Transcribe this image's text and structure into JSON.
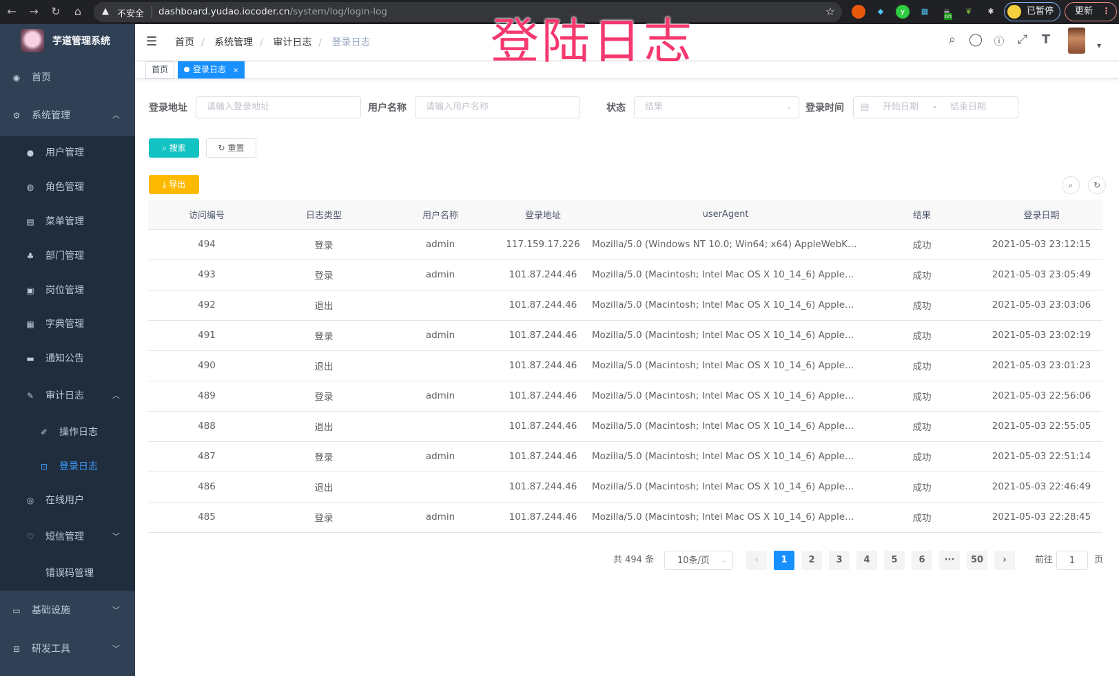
{
  "browser": {
    "insecure": "不安全",
    "url_host": "dashboard.yudao.iocoder.cn",
    "url_path": "/system/log/login-log",
    "paused": "已暂停",
    "update": "更新",
    "ext_badge": "on"
  },
  "sidebar": {
    "title": "芋道管理系统",
    "items": [
      {
        "label": "首页",
        "icon": "dashboard-icon"
      },
      {
        "label": "系统管理",
        "icon": "gear-icon",
        "expanded": true
      },
      {
        "label": "用户管理",
        "icon": "user-icon"
      },
      {
        "label": "角色管理",
        "icon": "peoples-icon"
      },
      {
        "label": "菜单管理",
        "icon": "tree-table-icon"
      },
      {
        "label": "部门管理",
        "icon": "tree-icon"
      },
      {
        "label": "岗位管理",
        "icon": "post-icon"
      },
      {
        "label": "字典管理",
        "icon": "dict-icon"
      },
      {
        "label": "通知公告",
        "icon": "message-icon"
      },
      {
        "label": "审计日志",
        "icon": "log-icon",
        "expanded": true
      },
      {
        "label": "操作日志",
        "icon": "form-icon"
      },
      {
        "label": "登录日志",
        "icon": "logininfor-icon",
        "active": true
      },
      {
        "label": "在线用户",
        "icon": "online-icon"
      },
      {
        "label": "短信管理",
        "icon": "validcode-icon"
      },
      {
        "label": "错误码管理",
        "icon": "code-icon"
      },
      {
        "label": "基础设施",
        "icon": "monitor-icon"
      },
      {
        "label": "研发工具",
        "icon": "tool-icon"
      }
    ]
  },
  "header": {
    "breadcrumb": [
      "首页",
      "系统管理",
      "审计日志",
      "登录日志"
    ],
    "overlay_title": "登陆日志"
  },
  "tags": [
    {
      "label": "首页"
    },
    {
      "label": "登录日志",
      "close": "×"
    }
  ],
  "filters": {
    "ip_label": "登录地址",
    "ip_placeholder": "请输入登录地址",
    "user_label": "用户名称",
    "user_placeholder": "请输入用户名称",
    "status_label": "状态",
    "status_placeholder": "结果",
    "time_label": "登录时间",
    "start_placeholder": "开始日期",
    "range_sep": "-",
    "end_placeholder": "结束日期",
    "search": "搜索",
    "reset": "重置",
    "export": "导出"
  },
  "colors": {
    "sidebar": "#304156",
    "submenu": "#1f2d3d",
    "primary": "#1890ff",
    "search": "#13c2c2",
    "export": "#ffba00",
    "overlay": "#f5386e"
  },
  "table": {
    "columns": [
      "访问编号",
      "日志类型",
      "用户名称",
      "登录地址",
      "userAgent",
      "结果",
      "登录日期"
    ],
    "rows": [
      [
        "494",
        "登录",
        "admin",
        "117.159.17.226",
        "Mozilla/5.0 (Windows NT 10.0; Win64; x64) AppleWebKit...",
        "成功",
        "2021-05-03 23:12:15"
      ],
      [
        "493",
        "登录",
        "admin",
        "101.87.244.46",
        "Mozilla/5.0 (Macintosh; Intel Mac OS X 10_14_6) AppleWe...",
        "成功",
        "2021-05-03 23:05:49"
      ],
      [
        "492",
        "退出",
        "",
        "101.87.244.46",
        "Mozilla/5.0 (Macintosh; Intel Mac OS X 10_14_6) AppleWe...",
        "成功",
        "2021-05-03 23:03:06"
      ],
      [
        "491",
        "登录",
        "admin",
        "101.87.244.46",
        "Mozilla/5.0 (Macintosh; Intel Mac OS X 10_14_6) AppleWe...",
        "成功",
        "2021-05-03 23:02:19"
      ],
      [
        "490",
        "退出",
        "",
        "101.87.244.46",
        "Mozilla/5.0 (Macintosh; Intel Mac OS X 10_14_6) AppleWe...",
        "成功",
        "2021-05-03 23:01:23"
      ],
      [
        "489",
        "登录",
        "admin",
        "101.87.244.46",
        "Mozilla/5.0 (Macintosh; Intel Mac OS X 10_14_6) AppleWe...",
        "成功",
        "2021-05-03 22:56:06"
      ],
      [
        "488",
        "退出",
        "",
        "101.87.244.46",
        "Mozilla/5.0 (Macintosh; Intel Mac OS X 10_14_6) AppleWe...",
        "成功",
        "2021-05-03 22:55:05"
      ],
      [
        "487",
        "登录",
        "admin",
        "101.87.244.46",
        "Mozilla/5.0 (Macintosh; Intel Mac OS X 10_14_6) AppleWe...",
        "成功",
        "2021-05-03 22:51:14"
      ],
      [
        "486",
        "退出",
        "",
        "101.87.244.46",
        "Mozilla/5.0 (Macintosh; Intel Mac OS X 10_14_6) AppleWe...",
        "成功",
        "2021-05-03 22:46:49"
      ],
      [
        "485",
        "登录",
        "admin",
        "101.87.244.46",
        "Mozilla/5.0 (Macintosh; Intel Mac OS X 10_14_6) AppleWe...",
        "成功",
        "2021-05-03 22:28:45"
      ]
    ]
  },
  "pagination": {
    "total": "共 494 条",
    "page_size": "10条/页",
    "pages": [
      "1",
      "2",
      "3",
      "4",
      "5",
      "6",
      "···",
      "50"
    ],
    "current": "1",
    "goto_label": "前往",
    "goto_value": "1",
    "goto_suffix": "页"
  }
}
